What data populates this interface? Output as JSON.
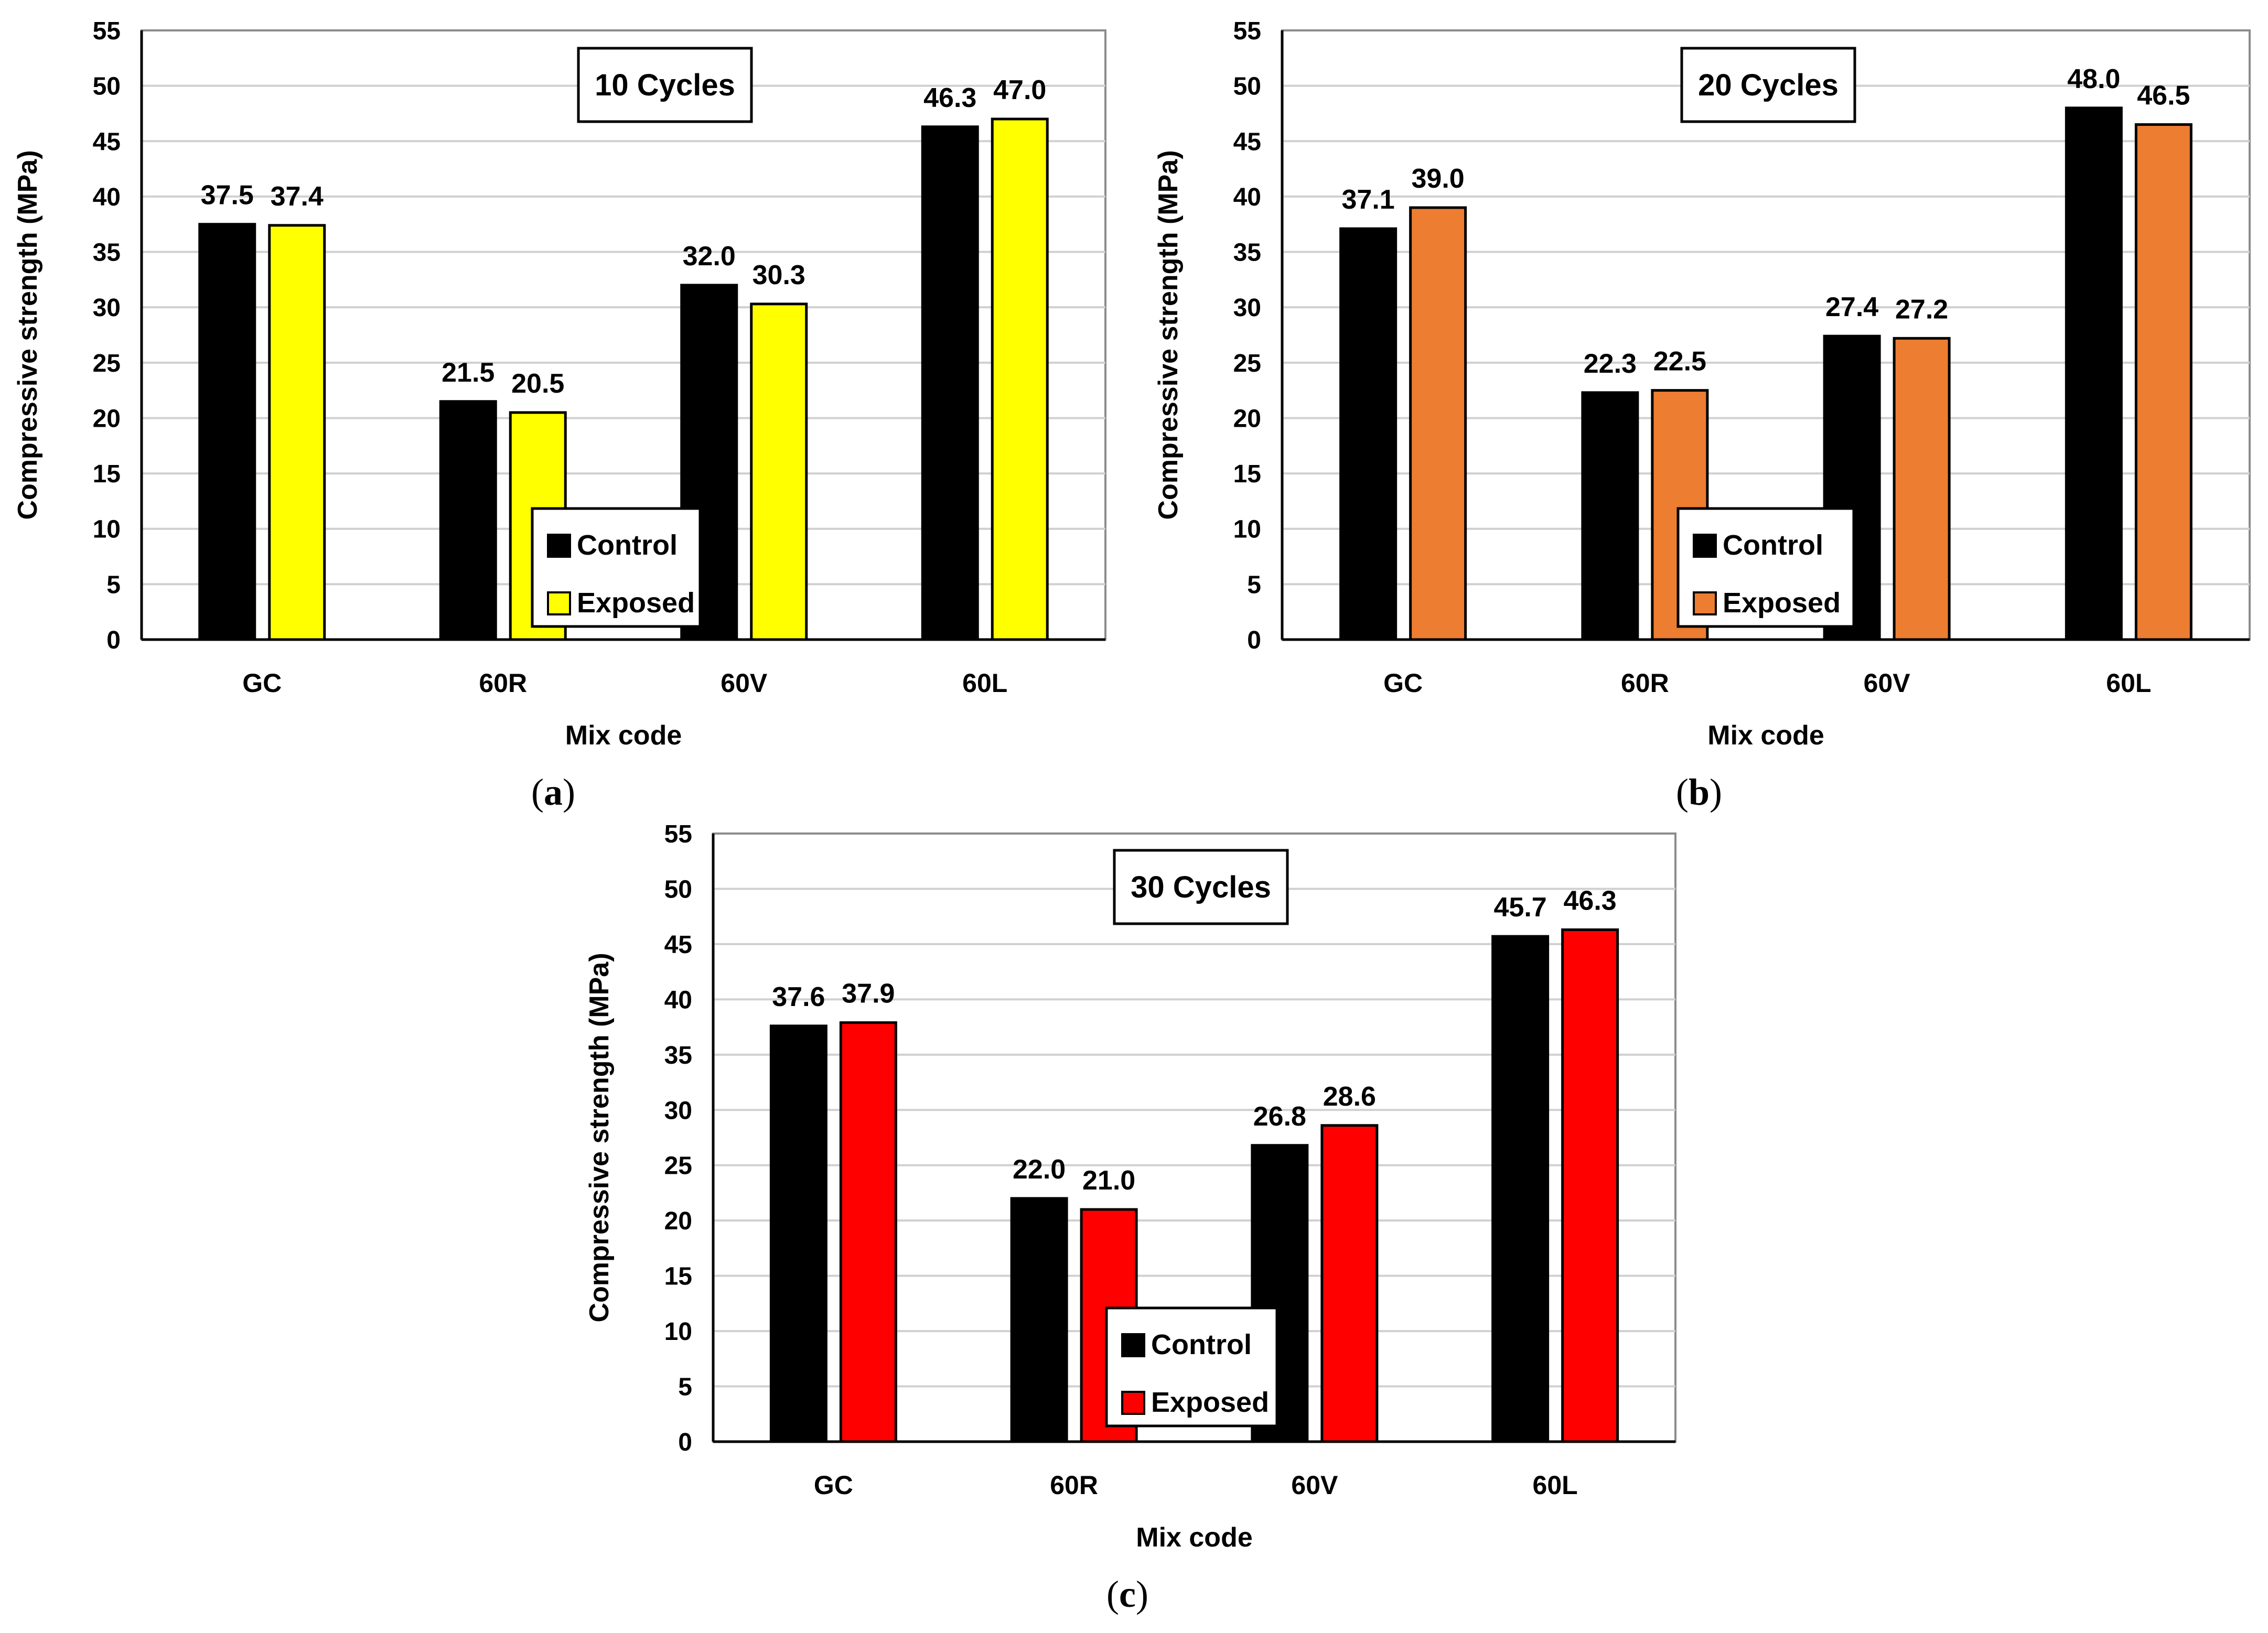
{
  "chart_data": [
    {
      "type": "bar",
      "panel": "a",
      "caption_prefix": "(",
      "caption_letter": "a",
      "caption_suffix": ")",
      "title": "10 Cycles",
      "xlabel": "Mix code",
      "ylabel": "Compressive strength (MPa)",
      "ylim": [
        0,
        55
      ],
      "yticks": [
        0,
        5,
        10,
        15,
        20,
        25,
        30,
        35,
        40,
        45,
        50,
        55
      ],
      "grid": true,
      "categories": [
        "GC",
        "60R",
        "60V",
        "60L"
      ],
      "series": [
        {
          "name": "Control",
          "color": "#000000",
          "values": [
            37.5,
            21.5,
            32.0,
            46.3
          ],
          "labels": [
            "37.5",
            "21.5",
            "32.0",
            "46.3"
          ]
        },
        {
          "name": "Exposed",
          "color": "#FFFF00",
          "values": [
            37.4,
            20.5,
            30.3,
            47.0
          ],
          "labels": [
            "37.4",
            "20.5",
            "30.3",
            "47.0"
          ]
        }
      ],
      "legend": "center"
    },
    {
      "type": "bar",
      "panel": "b",
      "caption_prefix": "(",
      "caption_letter": "b",
      "caption_suffix": ")",
      "title": "20 Cycles",
      "xlabel": "Mix code",
      "ylabel": "Compressive strength (MPa)",
      "ylim": [
        0,
        55
      ],
      "yticks": [
        0,
        5,
        10,
        15,
        20,
        25,
        30,
        35,
        40,
        45,
        50,
        55
      ],
      "grid": true,
      "categories": [
        "GC",
        "60R",
        "60V",
        "60L"
      ],
      "series": [
        {
          "name": "Control",
          "color": "#000000",
          "values": [
            37.1,
            22.3,
            27.4,
            48.0
          ],
          "labels": [
            "37.1",
            "22.3",
            "27.4",
            "48.0"
          ]
        },
        {
          "name": "Exposed",
          "color": "#ED7D31",
          "values": [
            39.0,
            22.5,
            27.2,
            46.5
          ],
          "labels": [
            "39.0",
            "22.5",
            "27.2",
            "46.5"
          ]
        }
      ],
      "legend": "center"
    },
    {
      "type": "bar",
      "panel": "c",
      "caption_prefix": "(",
      "caption_letter": "c",
      "caption_suffix": ")",
      "title": "30 Cycles",
      "xlabel": "Mix code",
      "ylabel": "Compressive strength (MPa)",
      "ylim": [
        0,
        55
      ],
      "yticks": [
        0,
        5,
        10,
        15,
        20,
        25,
        30,
        35,
        40,
        45,
        50,
        55
      ],
      "grid": true,
      "categories": [
        "GC",
        "60R",
        "60V",
        "60L"
      ],
      "series": [
        {
          "name": "Control",
          "color": "#000000",
          "values": [
            37.6,
            22.0,
            26.8,
            45.7
          ],
          "labels": [
            "37.6",
            "22.0",
            "26.8",
            "45.7"
          ]
        },
        {
          "name": "Exposed",
          "color": "#FF0000",
          "values": [
            37.9,
            21.0,
            28.6,
            46.3
          ],
          "labels": [
            "37.9",
            "21.0",
            "28.6",
            "46.3"
          ]
        }
      ],
      "legend": "center"
    }
  ]
}
